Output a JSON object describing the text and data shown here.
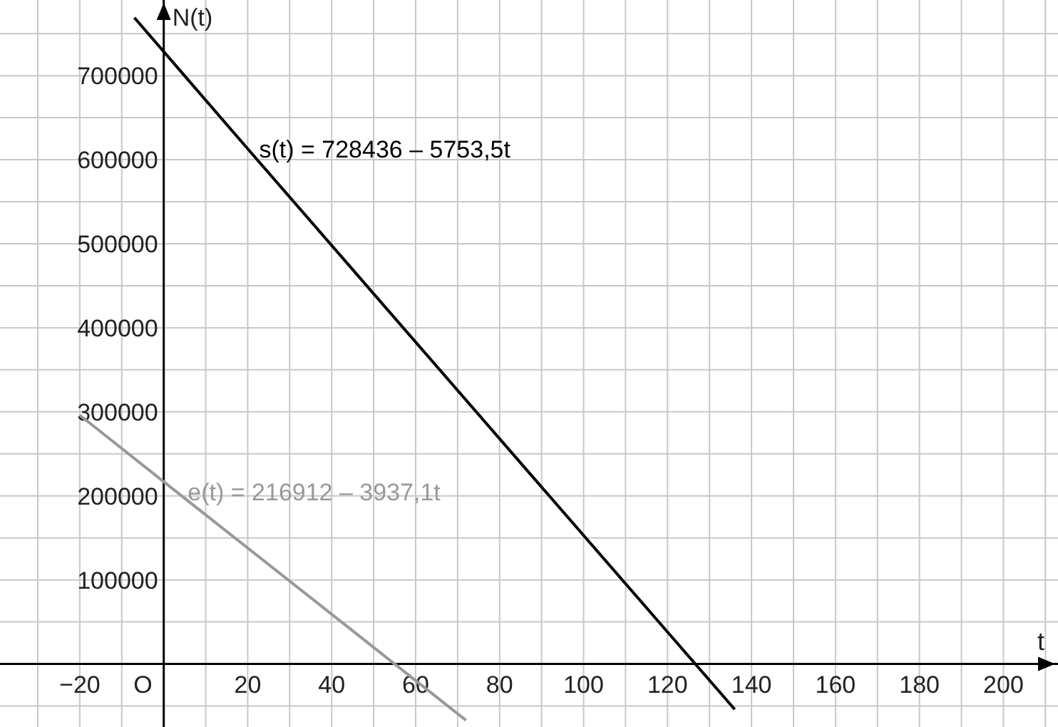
{
  "chart_data": {
    "type": "line",
    "xlabel": "t",
    "ylabel": "N(t)",
    "xlim": [
      -39,
      213
    ],
    "ylim": [
      -75000,
      790000
    ],
    "xticks": [
      {
        "value": -30,
        "label": null
      },
      {
        "value": -20,
        "label": "−20"
      },
      {
        "value": -10,
        "label": null
      },
      {
        "value": 0,
        "label": null
      },
      {
        "value": 10,
        "label": null
      },
      20,
      {
        "value": 30,
        "label": null
      },
      40,
      {
        "value": 50,
        "label": null
      },
      60,
      {
        "value": 70,
        "label": null
      },
      80,
      {
        "value": 90,
        "label": null
      },
      100,
      {
        "value": 110,
        "label": null
      },
      120,
      {
        "value": 130,
        "label": null
      },
      140,
      {
        "value": 150,
        "label": null
      },
      160,
      {
        "value": 170,
        "label": null
      },
      180,
      {
        "value": 190,
        "label": null
      },
      200,
      {
        "value": 210,
        "label": null
      }
    ],
    "yticks": [
      {
        "value": -50000,
        "label": null
      },
      {
        "value": 50000,
        "label": null
      },
      100000,
      {
        "value": 150000,
        "label": null
      },
      200000,
      {
        "value": 250000,
        "label": null
      },
      300000,
      {
        "value": 350000,
        "label": null
      },
      400000,
      {
        "value": 450000,
        "label": null
      },
      500000,
      {
        "value": 550000,
        "label": null
      },
      600000,
      {
        "value": 650000,
        "label": null
      },
      700000,
      {
        "value": 750000,
        "label": null
      }
    ],
    "annotations": [
      "O"
    ],
    "grid": true,
    "marker": "none",
    "line_style": "solid",
    "series": [
      {
        "name": "s(t) = 728436 – 5753,5t",
        "color": "#000000",
        "x": [
          -7,
          20,
          136
        ],
        "values": [
          769000,
          613000,
          -54000
        ]
      },
      {
        "name": "e(t) = 216912 – 3937,1t",
        "color": "#999999",
        "x": [
          -20,
          3,
          72
        ],
        "values": [
          296000,
          205000,
          -67000
        ]
      }
    ]
  }
}
